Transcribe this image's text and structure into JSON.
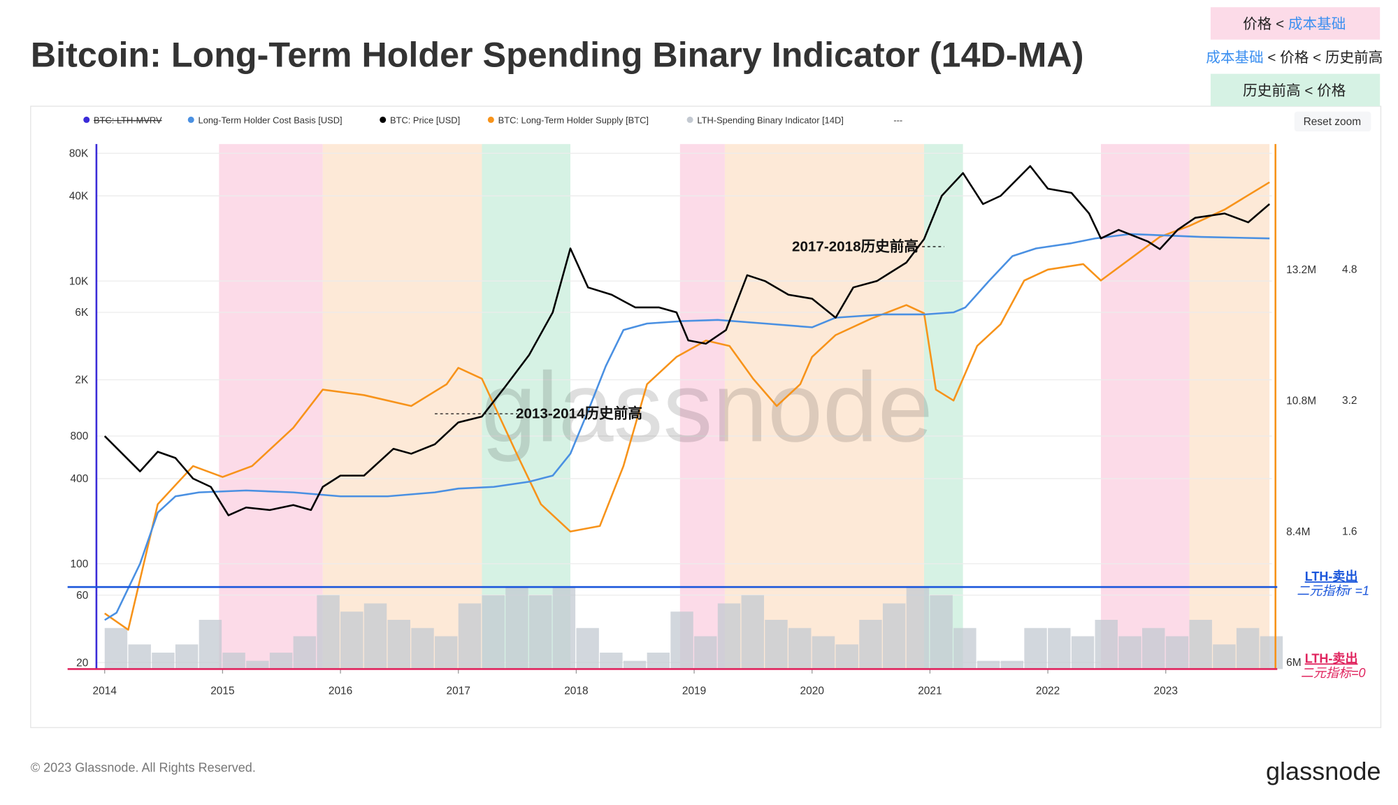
{
  "legend_boxes": [
    {
      "color": "#fcdbe8",
      "parts": [
        {
          "text": "价格 < ",
          "color": "#222222"
        },
        {
          "text": "成本基础",
          "color": "#3b8ff0"
        }
      ]
    },
    {
      "color": "#ffffff",
      "parts": [
        {
          "text": "成本基础",
          "color": "#3b8ff0"
        },
        {
          "text": " < 价格 < 历史前高",
          "color": "#222222"
        }
      ]
    },
    {
      "color": "#d6f2e4",
      "parts": [
        {
          "text": "历史前高 < 价格",
          "color": "#222222"
        }
      ]
    }
  ],
  "footer": {
    "copyright": "© 2023 Glassnode. All Rights Reserved.",
    "logo": "glassnode"
  },
  "chart_data": {
    "type": "line",
    "title": "Bitcoin: Long-Term Holder Spending Binary Indicator (14D-MA)",
    "watermark": "glassnode",
    "reset_zoom": "Reset zoom",
    "legend_extra": "---",
    "log_y": true,
    "grid": true,
    "xlim": [
      2013.93,
      2023.9
    ],
    "xticks": [
      2014,
      2015,
      2016,
      2017,
      2018,
      2019,
      2020,
      2021,
      2022,
      2023
    ],
    "ylim": [
      18,
      93000
    ],
    "yticks": [
      20,
      60,
      100,
      400,
      800,
      {
        "value": 2000,
        "label": "2K"
      },
      {
        "value": 6000,
        "label": "6K"
      },
      {
        "value": 10000,
        "label": "10K"
      },
      {
        "value": 40000,
        "label": "40K"
      },
      {
        "value": 80000,
        "label": "80K"
      }
    ],
    "y2lim": [
      5880000,
      15500000
    ],
    "y2ticks": [
      {
        "value": 6000000,
        "label": "6M"
      },
      {
        "value": 8400000,
        "label": "8.4M"
      },
      {
        "value": 10800000,
        "label": "10.8M"
      },
      {
        "value": 13200000,
        "label": "13.2M"
      }
    ],
    "y3lim": [
      -0.08,
      6.33
    ],
    "y3ticks": [
      1.6,
      3.2,
      4.8
    ],
    "y4lim": [
      0,
      6.4
    ],
    "regions": [
      {
        "start": 2014.97,
        "end": 2015.85,
        "color": "#fcdbe8"
      },
      {
        "start": 2015.85,
        "end": 2017.2,
        "color": "#fde9d7"
      },
      {
        "start": 2017.2,
        "end": 2017.95,
        "color": "#d6f2e4"
      },
      {
        "start": 2018.88,
        "end": 2019.26,
        "color": "#fcdbe8"
      },
      {
        "start": 2019.26,
        "end": 2020.95,
        "color": "#fde9d7"
      },
      {
        "start": 2020.95,
        "end": 2021.28,
        "color": "#d6f2e4"
      },
      {
        "start": 2022.45,
        "end": 2023.2,
        "color": "#fcdbe8"
      },
      {
        "start": 2023.2,
        "end": 2023.88,
        "color": "#fde9d7"
      }
    ],
    "reference_lines": [
      {
        "value": 1,
        "color": "#1a56db",
        "label": [
          "LTH-卖出",
          "二元指标r =1"
        ]
      },
      {
        "value": 0,
        "color": "#e0245e",
        "label": [
          "LTH-卖出",
          "二元指标=0"
        ]
      }
    ],
    "annotations": [
      {
        "text": "2017-2018历史前高",
        "x": [
          2020.75,
          2021.12
        ],
        "y": 17500
      },
      {
        "text": "2013-2014历史前高",
        "x": [
          2016.8,
          2017.5
        ],
        "y": 1150
      }
    ],
    "series": [
      {
        "name": "BTC: LTH-MVRV",
        "color": "#3a2bd8",
        "hidden": true,
        "axis": "y3"
      },
      {
        "name": "Long-Term Holder Cost Basis [USD]",
        "color": "#4a90e2",
        "axis": "y",
        "x": [
          2014.0,
          2014.1,
          2014.3,
          2014.45,
          2014.6,
          2014.8,
          2015.2,
          2015.6,
          2016.0,
          2016.4,
          2016.8,
          2017.0,
          2017.3,
          2017.6,
          2017.8,
          2017.95,
          2018.1,
          2018.25,
          2018.4,
          2018.6,
          2018.9,
          2019.2,
          2019.6,
          2020.0,
          2020.2,
          2020.6,
          2020.95,
          2021.2,
          2021.3,
          2021.5,
          2021.7,
          2021.9,
          2022.2,
          2022.4,
          2022.7,
          2023.0,
          2023.3,
          2023.88
        ],
        "values": [
          40,
          45,
          100,
          230,
          300,
          320,
          330,
          320,
          300,
          300,
          320,
          340,
          350,
          380,
          420,
          600,
          1200,
          2500,
          4500,
          5000,
          5200,
          5300,
          5000,
          4700,
          5500,
          5800,
          5800,
          6000,
          6500,
          10000,
          15000,
          17000,
          18500,
          20000,
          21500,
          21000,
          20500,
          20000
        ]
      },
      {
        "name": "BTC: Price [USD]",
        "color": "#000000",
        "axis": "y",
        "x": [
          2014.0,
          2014.15,
          2014.3,
          2014.45,
          2014.6,
          2014.75,
          2014.9,
          2015.05,
          2015.2,
          2015.4,
          2015.6,
          2015.75,
          2015.85,
          2016.0,
          2016.2,
          2016.45,
          2016.6,
          2016.8,
          2017.0,
          2017.2,
          2017.4,
          2017.6,
          2017.8,
          2017.95,
          2018.1,
          2018.3,
          2018.5,
          2018.7,
          2018.85,
          2018.95,
          2019.1,
          2019.27,
          2019.45,
          2019.6,
          2019.8,
          2020.0,
          2020.2,
          2020.35,
          2020.55,
          2020.8,
          2020.95,
          2021.1,
          2021.28,
          2021.45,
          2021.6,
          2021.85,
          2022.0,
          2022.2,
          2022.35,
          2022.45,
          2022.6,
          2022.85,
          2022.95,
          2023.1,
          2023.25,
          2023.5,
          2023.7,
          2023.88
        ],
        "values": [
          800,
          600,
          450,
          620,
          560,
          400,
          350,
          220,
          250,
          240,
          260,
          240,
          350,
          420,
          420,
          650,
          600,
          700,
          1000,
          1100,
          1800,
          3000,
          6000,
          17000,
          9000,
          8000,
          6500,
          6500,
          6000,
          3800,
          3600,
          4500,
          11000,
          10000,
          8000,
          7500,
          5500,
          9000,
          10000,
          13500,
          19800,
          40000,
          58000,
          35000,
          40000,
          65000,
          45000,
          42000,
          30000,
          20000,
          23000,
          19000,
          16800,
          23000,
          28000,
          30000,
          26000,
          35000
        ]
      },
      {
        "name": "BTC: Long-Term Holder Supply [BTC]",
        "color": "#f7931a",
        "axis": "y2",
        "x": [
          2014.0,
          2014.2,
          2014.45,
          2014.75,
          2015.0,
          2015.25,
          2015.6,
          2015.85,
          2016.2,
          2016.6,
          2016.9,
          2017.0,
          2017.2,
          2017.5,
          2017.7,
          2017.95,
          2018.2,
          2018.4,
          2018.6,
          2018.85,
          2019.1,
          2019.3,
          2019.5,
          2019.7,
          2019.9,
          2020.0,
          2020.2,
          2020.5,
          2020.8,
          2020.95,
          2021.05,
          2021.2,
          2021.4,
          2021.6,
          2021.8,
          2022.0,
          2022.3,
          2022.45,
          2022.7,
          2022.95,
          2023.2,
          2023.5,
          2023.88
        ],
        "values": [
          6900000,
          6600000,
          8900000,
          9600000,
          9400000,
          9600000,
          10300000,
          11000000,
          10900000,
          10700000,
          11100000,
          11400000,
          11200000,
          9800000,
          8900000,
          8400000,
          8500000,
          9600000,
          11100000,
          11600000,
          11900000,
          11800000,
          11200000,
          10700000,
          11100000,
          11600000,
          12000000,
          12300000,
          12550000,
          12400000,
          11000000,
          10800000,
          11800000,
          12200000,
          13000000,
          13200000,
          13300000,
          13000000,
          13400000,
          13800000,
          14000000,
          14300000,
          14800000
        ]
      },
      {
        "name": "LTH-Spending Binary Indicator [14D]",
        "color": "#c3c9d1",
        "axis": "y4",
        "x": [
          2014.0,
          2014.2,
          2014.4,
          2014.6,
          2014.8,
          2015.0,
          2015.2,
          2015.4,
          2015.6,
          2015.8,
          2016.0,
          2016.2,
          2016.4,
          2016.6,
          2016.8,
          2017.0,
          2017.2,
          2017.4,
          2017.6,
          2017.8,
          2018.0,
          2018.2,
          2018.4,
          2018.6,
          2018.8,
          2019.0,
          2019.2,
          2019.4,
          2019.6,
          2019.8,
          2020.0,
          2020.2,
          2020.4,
          2020.6,
          2020.8,
          2021.0,
          2021.2,
          2021.4,
          2021.6,
          2021.8,
          2022.0,
          2022.2,
          2022.4,
          2022.6,
          2022.8,
          2023.0,
          2023.2,
          2023.4,
          2023.6,
          2023.8
        ],
        "values": [
          0.5,
          0.3,
          0.2,
          0.3,
          0.6,
          0.2,
          0.1,
          0.2,
          0.4,
          0.9,
          0.7,
          0.8,
          0.6,
          0.5,
          0.4,
          0.8,
          0.9,
          1.0,
          0.9,
          1.0,
          0.5,
          0.2,
          0.1,
          0.2,
          0.7,
          0.4,
          0.8,
          0.9,
          0.6,
          0.5,
          0.4,
          0.3,
          0.6,
          0.8,
          1.0,
          0.9,
          0.5,
          0.1,
          0.1,
          0.5,
          0.5,
          0.4,
          0.6,
          0.4,
          0.5,
          0.4,
          0.6,
          0.3,
          0.5,
          0.4
        ]
      }
    ]
  }
}
